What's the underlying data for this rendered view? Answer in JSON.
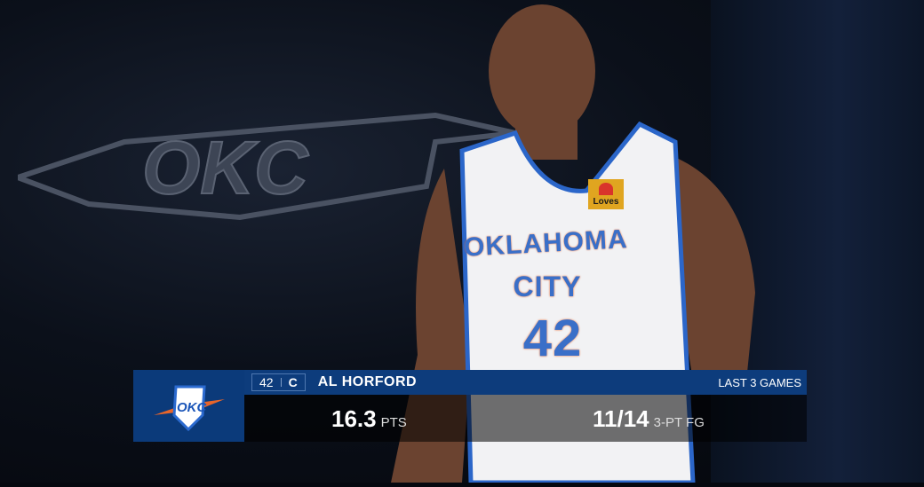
{
  "scene": {
    "wall_logo_text": "OKC",
    "jersey": {
      "line1": "OKLAHOMA",
      "line2": "CITY",
      "number": "42",
      "sponsor": "Loves"
    }
  },
  "lower_third": {
    "team_logo": "okc-thunder-logo",
    "team_logo_text": "OKC",
    "number": "42",
    "position": "C",
    "player_name": "AL HORFORD",
    "context": "LAST 3 GAMES",
    "stats": [
      {
        "value": "16.3",
        "label": "PTS"
      },
      {
        "value": "11/14",
        "label": "3-PT FG"
      }
    ],
    "colors": {
      "primary": "#0d3c7c",
      "accent": "#e8652a"
    }
  }
}
